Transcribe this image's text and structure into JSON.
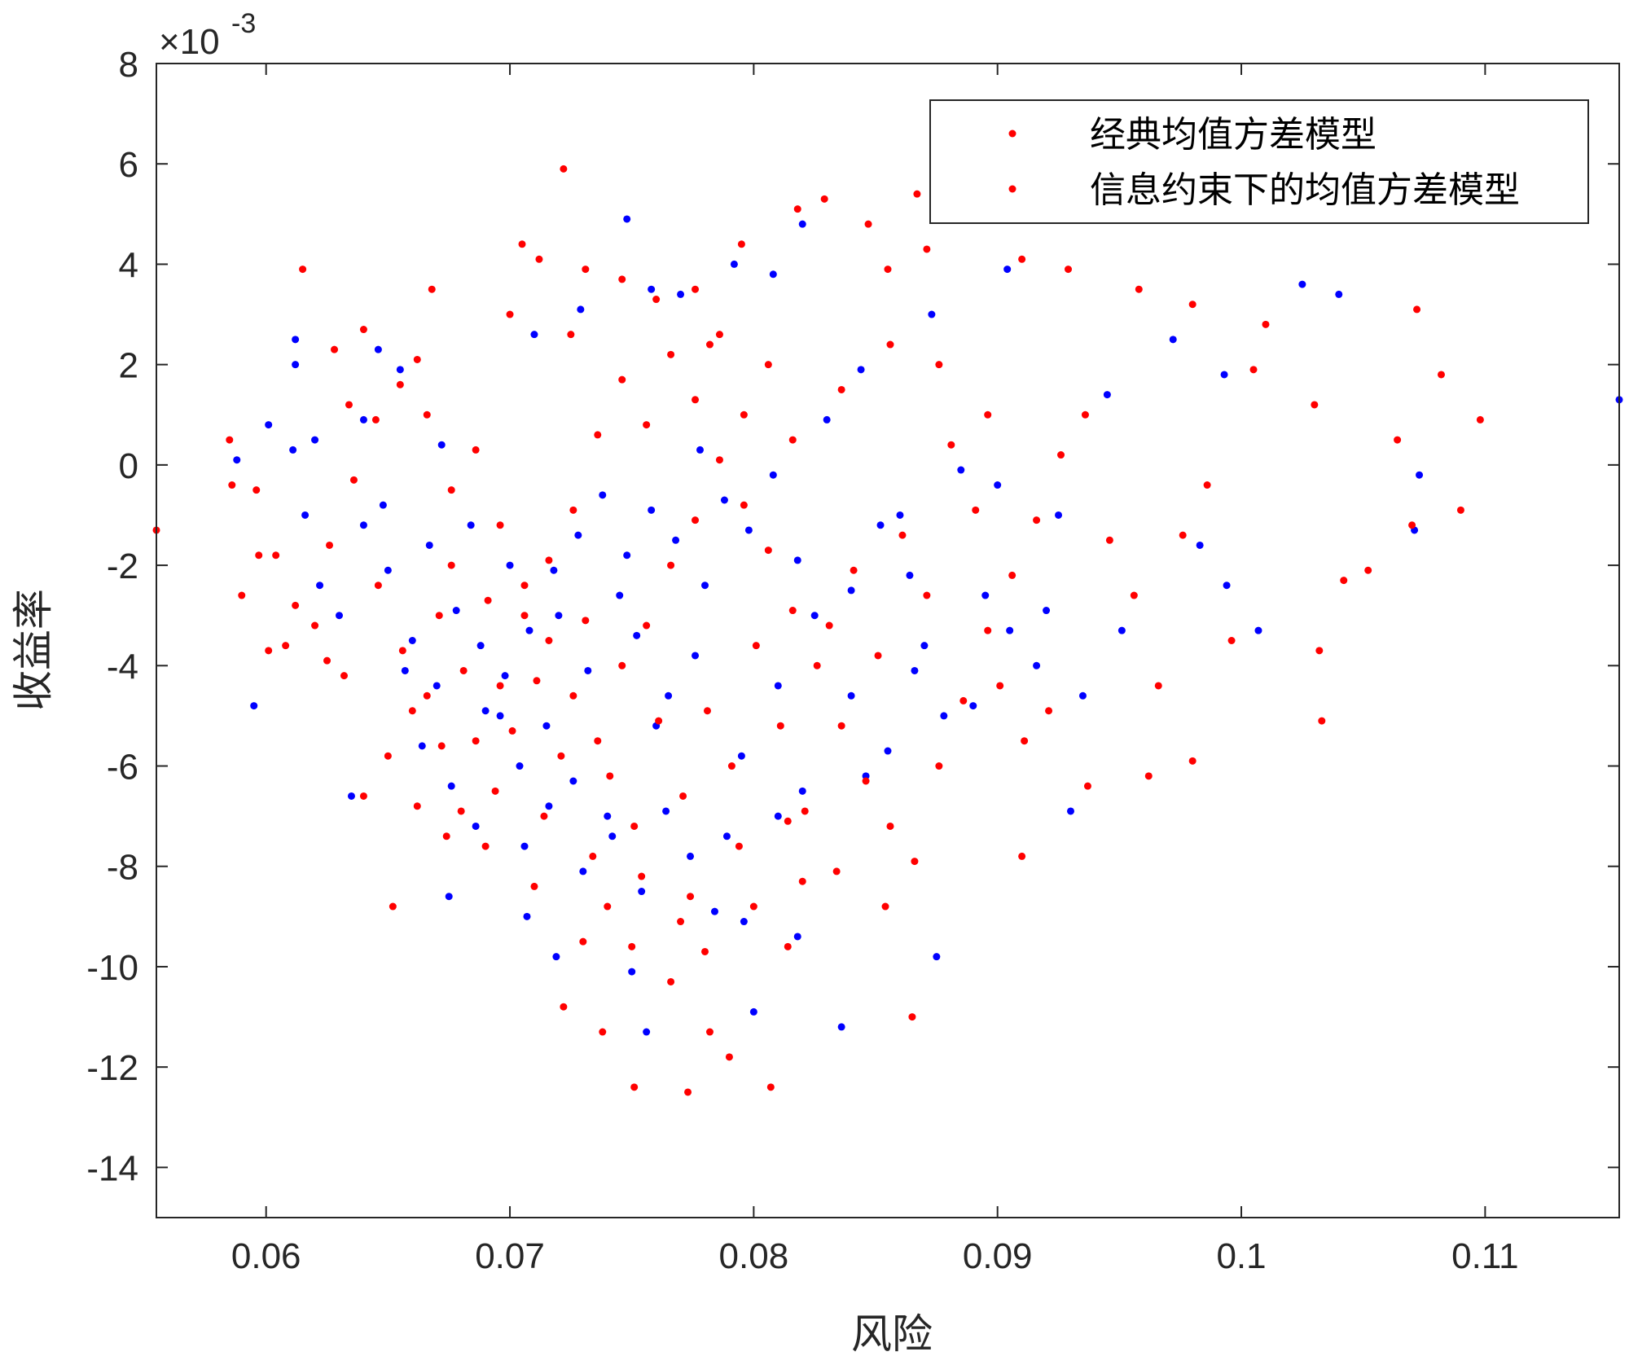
{
  "chart_data": {
    "type": "scatter",
    "title": "",
    "xlabel": "风险",
    "ylabel": "收益率",
    "xlim": [
      0.0555,
      0.1155
    ],
    "ylim": [
      -15,
      8
    ],
    "x_ticks": [
      0.06,
      0.07,
      0.08,
      0.09,
      0.1,
      0.11
    ],
    "x_tick_labels": [
      "0.06",
      "0.07",
      "0.08",
      "0.09",
      "0.1",
      "0.11"
    ],
    "y_ticks": [
      -14,
      -12,
      -10,
      -8,
      -6,
      -4,
      -2,
      0,
      2,
      4,
      6,
      8
    ],
    "y_tick_labels": [
      "-14",
      "-12",
      "-10",
      "-8",
      "-6",
      "-4",
      "-2",
      "0",
      "2",
      "4",
      "6",
      "8"
    ],
    "y_exponent_label": "×10",
    "y_exponent_power": "-3",
    "grid": false,
    "legend_position": "top-right",
    "legend": [
      "经典均值方差模型",
      "信息约束下的均值方差模型"
    ],
    "series": [
      {
        "name": "经典均值方差模型",
        "color": "#0000ff",
        "points": [
          [
            0.0588,
            0.1
          ],
          [
            0.0612,
            2.5
          ],
          [
            0.0612,
            2.0
          ],
          [
            0.0601,
            0.8
          ],
          [
            0.0611,
            0.3
          ],
          [
            0.0595,
            -4.8
          ],
          [
            0.0635,
            -6.6
          ],
          [
            0.0655,
            1.9
          ],
          [
            0.0672,
            0.4
          ],
          [
            0.0675,
            -8.6
          ],
          [
            0.0748,
            4.9
          ],
          [
            0.0729,
            3.1
          ],
          [
            0.071,
            2.6
          ],
          [
            0.0758,
            3.5
          ],
          [
            0.077,
            3.4
          ],
          [
            0.0792,
            4.0
          ],
          [
            0.0808,
            3.8
          ],
          [
            0.082,
            4.8
          ],
          [
            0.0844,
            1.9
          ],
          [
            0.0873,
            3.0
          ],
          [
            0.0904,
            3.9
          ],
          [
            0.0945,
            1.4
          ],
          [
            0.0972,
            2.5
          ],
          [
            0.0993,
            1.8
          ],
          [
            0.1025,
            3.6
          ],
          [
            0.104,
            3.4
          ],
          [
            0.1155,
            1.3
          ],
          [
            0.0925,
            -1.0
          ],
          [
            0.0951,
            -3.3
          ],
          [
            0.0983,
            -1.6
          ],
          [
            0.0994,
            -2.4
          ],
          [
            0.1007,
            -3.3
          ],
          [
            0.1071,
            -1.3
          ],
          [
            0.1073,
            -0.2
          ],
          [
            0.093,
            -6.9
          ],
          [
            0.0875,
            -9.8
          ],
          [
            0.0836,
            -11.2
          ],
          [
            0.0756,
            -11.3
          ],
          [
            0.0719,
            -9.8
          ],
          [
            0.075,
            -10.1
          ],
          [
            0.08,
            -10.9
          ],
          [
            0.0818,
            -9.4
          ],
          [
            0.0707,
            -9.0
          ],
          [
            0.0789,
            -7.4
          ],
          [
            0.0846,
            -6.2
          ],
          [
            0.087,
            -3.6
          ],
          [
            0.089,
            -4.8
          ],
          [
            0.0905,
            -3.3
          ],
          [
            0.0916,
            -4.0
          ],
          [
            0.0935,
            -4.6
          ],
          [
            0.086,
            -1.0
          ],
          [
            0.0885,
            -0.1
          ],
          [
            0.09,
            -0.4
          ],
          [
            0.0684,
            -1.2
          ],
          [
            0.07,
            -2.0
          ],
          [
            0.072,
            -3.0
          ],
          [
            0.0732,
            -4.1
          ],
          [
            0.0745,
            -2.6
          ],
          [
            0.076,
            -5.2
          ],
          [
            0.0776,
            -3.8
          ],
          [
            0.069,
            -4.9
          ],
          [
            0.0704,
            -6.0
          ],
          [
            0.0715,
            -5.2
          ],
          [
            0.0726,
            -6.3
          ],
          [
            0.074,
            -7.0
          ],
          [
            0.0752,
            -3.4
          ],
          [
            0.0765,
            -4.6
          ],
          [
            0.078,
            -2.4
          ],
          [
            0.0795,
            -5.8
          ],
          [
            0.081,
            -4.4
          ],
          [
            0.0825,
            -3.0
          ],
          [
            0.065,
            -2.1
          ],
          [
            0.066,
            -3.5
          ],
          [
            0.067,
            -4.4
          ],
          [
            0.0678,
            -2.9
          ],
          [
            0.0688,
            -3.6
          ],
          [
            0.0698,
            -4.2
          ],
          [
            0.0708,
            -3.3
          ],
          [
            0.0718,
            -2.1
          ],
          [
            0.0728,
            -1.4
          ],
          [
            0.0738,
            -0.6
          ],
          [
            0.0748,
            -1.8
          ],
          [
            0.0758,
            -0.9
          ],
          [
            0.0768,
            -1.5
          ],
          [
            0.0778,
            0.3
          ],
          [
            0.0788,
            -0.7
          ],
          [
            0.0798,
            -1.3
          ],
          [
            0.0808,
            -0.2
          ],
          [
            0.0818,
            -1.9
          ],
          [
            0.083,
            0.9
          ],
          [
            0.084,
            -2.5
          ],
          [
            0.0852,
            -1.2
          ],
          [
            0.0864,
            -2.2
          ],
          [
            0.0664,
            -5.6
          ],
          [
            0.0676,
            -6.4
          ],
          [
            0.0686,
            -7.2
          ],
          [
            0.0696,
            -5.0
          ],
          [
            0.0706,
            -7.6
          ],
          [
            0.0716,
            -6.8
          ],
          [
            0.073,
            -8.1
          ],
          [
            0.0742,
            -7.4
          ],
          [
            0.0754,
            -8.5
          ],
          [
            0.0764,
            -6.9
          ],
          [
            0.0774,
            -7.8
          ],
          [
            0.0784,
            -8.9
          ],
          [
            0.0796,
            -9.1
          ],
          [
            0.081,
            -7.0
          ],
          [
            0.082,
            -6.5
          ],
          [
            0.084,
            -4.6
          ],
          [
            0.0855,
            -5.7
          ],
          [
            0.0866,
            -4.1
          ],
          [
            0.0878,
            -5.0
          ],
          [
            0.0895,
            -2.6
          ],
          [
            0.092,
            -2.9
          ],
          [
            0.064,
            -1.2
          ],
          [
            0.0648,
            -0.8
          ],
          [
            0.0657,
            -4.1
          ],
          [
            0.0667,
            -1.6
          ],
          [
            0.063,
            -3.0
          ],
          [
            0.0622,
            -2.4
          ],
          [
            0.0616,
            -1.0
          ],
          [
            0.064,
            0.9
          ],
          [
            0.0646,
            2.3
          ],
          [
            0.062,
            0.5
          ]
        ]
      },
      {
        "name": "信息约束下的均值方差模型",
        "color": "#ff0000",
        "points": [
          [
            0.0555,
            -1.3
          ],
          [
            0.0585,
            0.5
          ],
          [
            0.0586,
            -0.4
          ],
          [
            0.0596,
            -0.5
          ],
          [
            0.059,
            -2.6
          ],
          [
            0.0597,
            -1.8
          ],
          [
            0.0601,
            -3.7
          ],
          [
            0.0615,
            3.9
          ],
          [
            0.064,
            2.7
          ],
          [
            0.0652,
            -8.8
          ],
          [
            0.0668,
            3.5
          ],
          [
            0.07,
            3.0
          ],
          [
            0.0705,
            4.4
          ],
          [
            0.0712,
            4.1
          ],
          [
            0.0722,
            5.9
          ],
          [
            0.0725,
            2.6
          ],
          [
            0.0731,
            3.9
          ],
          [
            0.0746,
            3.7
          ],
          [
            0.076,
            3.3
          ],
          [
            0.0776,
            3.5
          ],
          [
            0.0782,
            2.4
          ],
          [
            0.0795,
            4.4
          ],
          [
            0.0818,
            5.1
          ],
          [
            0.0829,
            5.3
          ],
          [
            0.0847,
            4.8
          ],
          [
            0.0855,
            3.9
          ],
          [
            0.0867,
            5.4
          ],
          [
            0.0871,
            4.3
          ],
          [
            0.091,
            4.1
          ],
          [
            0.0929,
            3.9
          ],
          [
            0.0958,
            3.5
          ],
          [
            0.098,
            3.2
          ],
          [
            0.1005,
            1.9
          ],
          [
            0.101,
            2.8
          ],
          [
            0.103,
            1.2
          ],
          [
            0.1072,
            3.1
          ],
          [
            0.1082,
            1.8
          ],
          [
            0.1098,
            0.9
          ],
          [
            0.1064,
            0.5
          ],
          [
            0.107,
            -1.2
          ],
          [
            0.109,
            -0.9
          ],
          [
            0.1052,
            -2.1
          ],
          [
            0.1042,
            -2.3
          ],
          [
            0.1032,
            -3.7
          ],
          [
            0.1033,
            -5.1
          ],
          [
            0.098,
            -5.9
          ],
          [
            0.0962,
            -6.2
          ],
          [
            0.0937,
            -6.4
          ],
          [
            0.091,
            -7.8
          ],
          [
            0.0865,
            -11.0
          ],
          [
            0.0807,
            -12.4
          ],
          [
            0.0773,
            -12.5
          ],
          [
            0.0751,
            -12.4
          ],
          [
            0.0738,
            -11.3
          ],
          [
            0.0722,
            -10.8
          ],
          [
            0.079,
            -11.8
          ],
          [
            0.0782,
            -11.3
          ],
          [
            0.075,
            -9.6
          ],
          [
            0.0766,
            -10.3
          ],
          [
            0.078,
            -9.7
          ],
          [
            0.0814,
            -9.6
          ],
          [
            0.082,
            -8.3
          ],
          [
            0.08,
            -8.8
          ],
          [
            0.077,
            -9.1
          ],
          [
            0.074,
            -8.8
          ],
          [
            0.073,
            -9.5
          ],
          [
            0.071,
            -8.4
          ],
          [
            0.069,
            -7.6
          ],
          [
            0.068,
            -6.9
          ],
          [
            0.0672,
            -5.6
          ],
          [
            0.066,
            -4.9
          ],
          [
            0.065,
            -5.8
          ],
          [
            0.064,
            -6.6
          ],
          [
            0.0632,
            -4.2
          ],
          [
            0.062,
            -3.2
          ],
          [
            0.0612,
            -2.8
          ],
          [
            0.0626,
            -1.6
          ],
          [
            0.0636,
            -0.3
          ],
          [
            0.0645,
            0.9
          ],
          [
            0.0655,
            1.6
          ],
          [
            0.0666,
            1.0
          ],
          [
            0.0676,
            -0.5
          ],
          [
            0.0686,
            0.3
          ],
          [
            0.0696,
            -1.2
          ],
          [
            0.0706,
            -2.4
          ],
          [
            0.0716,
            -3.5
          ],
          [
            0.0726,
            -4.6
          ],
          [
            0.0736,
            -5.5
          ],
          [
            0.0746,
            -4.0
          ],
          [
            0.0756,
            -3.2
          ],
          [
            0.0766,
            -2.0
          ],
          [
            0.0776,
            -1.1
          ],
          [
            0.0786,
            0.1
          ],
          [
            0.0796,
            -0.8
          ],
          [
            0.0806,
            -1.7
          ],
          [
            0.0816,
            -2.9
          ],
          [
            0.0826,
            -4.0
          ],
          [
            0.0836,
            -5.2
          ],
          [
            0.0846,
            -6.3
          ],
          [
            0.0856,
            -7.2
          ],
          [
            0.0866,
            -7.9
          ],
          [
            0.0876,
            -6.0
          ],
          [
            0.0886,
            -4.7
          ],
          [
            0.0896,
            -3.3
          ],
          [
            0.0906,
            -2.2
          ],
          [
            0.0916,
            -1.1
          ],
          [
            0.0926,
            0.2
          ],
          [
            0.0936,
            1.0
          ],
          [
            0.0946,
            -1.5
          ],
          [
            0.0956,
            -2.6
          ],
          [
            0.0966,
            -4.4
          ],
          [
            0.0976,
            -1.4
          ],
          [
            0.0986,
            -0.4
          ],
          [
            0.0996,
            -3.5
          ],
          [
            0.0671,
            -3.0
          ],
          [
            0.0681,
            -4.1
          ],
          [
            0.0691,
            -2.7
          ],
          [
            0.0701,
            -5.3
          ],
          [
            0.0711,
            -4.3
          ],
          [
            0.0721,
            -5.8
          ],
          [
            0.0731,
            -3.1
          ],
          [
            0.0741,
            -6.2
          ],
          [
            0.0751,
            -7.2
          ],
          [
            0.0761,
            -5.1
          ],
          [
            0.0771,
            -6.6
          ],
          [
            0.0781,
            -4.9
          ],
          [
            0.0791,
            -6.0
          ],
          [
            0.0801,
            -3.6
          ],
          [
            0.0811,
            -5.2
          ],
          [
            0.0821,
            -6.9
          ],
          [
            0.0831,
            -3.2
          ],
          [
            0.0841,
            -2.1
          ],
          [
            0.0851,
            -3.8
          ],
          [
            0.0861,
            -1.4
          ],
          [
            0.0871,
            -2.6
          ],
          [
            0.0881,
            0.4
          ],
          [
            0.0891,
            -0.9
          ],
          [
            0.0901,
            -4.4
          ],
          [
            0.0911,
            -5.5
          ],
          [
            0.0921,
            -4.9
          ],
          [
            0.0646,
            -2.4
          ],
          [
            0.0656,
            -3.7
          ],
          [
            0.0666,
            -4.6
          ],
          [
            0.0676,
            -2.0
          ],
          [
            0.0686,
            -5.5
          ],
          [
            0.0696,
            -4.4
          ],
          [
            0.0706,
            -3.0
          ],
          [
            0.0716,
            -1.9
          ],
          [
            0.0726,
            -0.9
          ],
          [
            0.0736,
            0.6
          ],
          [
            0.0746,
            1.7
          ],
          [
            0.0756,
            0.8
          ],
          [
            0.0766,
            2.2
          ],
          [
            0.0776,
            1.3
          ],
          [
            0.0786,
            2.6
          ],
          [
            0.0796,
            1.0
          ],
          [
            0.0806,
            2.0
          ],
          [
            0.0816,
            0.5
          ],
          [
            0.0836,
            1.5
          ],
          [
            0.0856,
            2.4
          ],
          [
            0.0876,
            2.0
          ],
          [
            0.0896,
            1.0
          ],
          [
            0.0662,
            -6.8
          ],
          [
            0.0674,
            -7.4
          ],
          [
            0.0694,
            -6.5
          ],
          [
            0.0714,
            -7.0
          ],
          [
            0.0734,
            -7.8
          ],
          [
            0.0754,
            -8.2
          ],
          [
            0.0774,
            -8.6
          ],
          [
            0.0794,
            -7.6
          ],
          [
            0.0814,
            -7.1
          ],
          [
            0.0834,
            -8.1
          ],
          [
            0.0854,
            -8.8
          ],
          [
            0.0625,
            -3.9
          ],
          [
            0.0608,
            -3.6
          ],
          [
            0.0604,
            -1.8
          ],
          [
            0.0634,
            1.2
          ],
          [
            0.0628,
            2.3
          ],
          [
            0.0662,
            2.1
          ]
        ]
      }
    ]
  }
}
